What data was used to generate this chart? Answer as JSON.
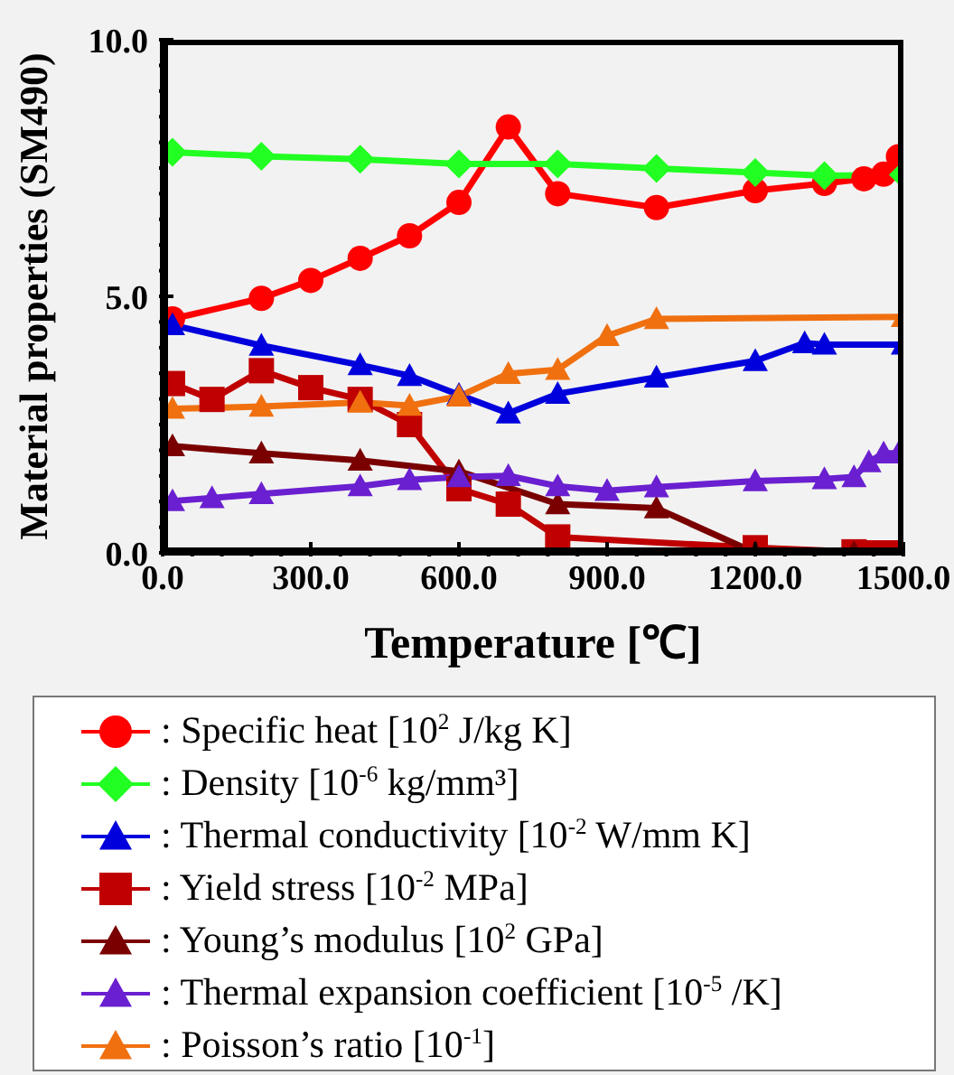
{
  "chart_data": {
    "type": "line",
    "xlabel": "Temperature [℃]",
    "ylabel": "Material properties (SM490)",
    "xlim": [
      0,
      1500
    ],
    "ylim": [
      0,
      10
    ],
    "xticks": [
      {
        "value": 0,
        "label": "0.0"
      },
      {
        "value": 60,
        "label": null
      },
      {
        "value": 120,
        "label": null
      },
      {
        "value": 180,
        "label": null
      },
      {
        "value": 240,
        "label": null
      },
      {
        "value": 300,
        "label": "300.0"
      },
      {
        "value": 360,
        "label": null
      },
      {
        "value": 420,
        "label": null
      },
      {
        "value": 480,
        "label": null
      },
      {
        "value": 540,
        "label": null
      },
      {
        "value": 600,
        "label": "600.0"
      },
      {
        "value": 660,
        "label": null
      },
      {
        "value": 720,
        "label": null
      },
      {
        "value": 780,
        "label": null
      },
      {
        "value": 840,
        "label": null
      },
      {
        "value": 900,
        "label": "900.0"
      },
      {
        "value": 960,
        "label": null
      },
      {
        "value": 1020,
        "label": null
      },
      {
        "value": 1080,
        "label": null
      },
      {
        "value": 1140,
        "label": null
      },
      {
        "value": 1200,
        "label": "1200.0"
      },
      {
        "value": 1260,
        "label": null
      },
      {
        "value": 1320,
        "label": null
      },
      {
        "value": 1380,
        "label": null
      },
      {
        "value": 1440,
        "label": null
      },
      {
        "value": 1500,
        "label": "1500.0"
      }
    ],
    "yticks": [
      {
        "value": 0,
        "label": "0.0"
      },
      {
        "value": 0.5,
        "label": null
      },
      {
        "value": 1,
        "label": null
      },
      {
        "value": 1.5,
        "label": null
      },
      {
        "value": 2,
        "label": null
      },
      {
        "value": 2.5,
        "label": null
      },
      {
        "value": 3,
        "label": null
      },
      {
        "value": 3.5,
        "label": null
      },
      {
        "value": 4,
        "label": null
      },
      {
        "value": 4.5,
        "label": null
      },
      {
        "value": 5,
        "label": "5.0"
      },
      {
        "value": 5.5,
        "label": null
      },
      {
        "value": 6,
        "label": null
      },
      {
        "value": 6.5,
        "label": null
      },
      {
        "value": 7,
        "label": null
      },
      {
        "value": 7.5,
        "label": null
      },
      {
        "value": 8,
        "label": null
      },
      {
        "value": 8.5,
        "label": null
      },
      {
        "value": 9,
        "label": null
      },
      {
        "value": 9.5,
        "label": null
      },
      {
        "value": 10,
        "label": "10.0"
      }
    ],
    "legend": "bottom",
    "series": [
      {
        "name": ": Specific heat [10$^{2}$ J/kg K]",
        "color": "#ff0000",
        "marker": "circle",
        "x": [
          20,
          200,
          300,
          400,
          500,
          600,
          700,
          800,
          1000,
          1200,
          1340,
          1420,
          1460,
          1490
        ],
        "values": [
          4.56,
          4.96,
          5.31,
          5.74,
          6.18,
          6.83,
          8.3,
          7.0,
          6.73,
          7.06,
          7.2,
          7.29,
          7.38,
          7.72
        ]
      },
      {
        "name": ": Density [10$^{-6}$ kg/mm³]",
        "color": "#22ff22",
        "marker": "diamond",
        "x": [
          20,
          200,
          400,
          600,
          800,
          1000,
          1200,
          1340,
          1500
        ],
        "values": [
          7.81,
          7.73,
          7.67,
          7.58,
          7.58,
          7.49,
          7.41,
          7.35,
          7.37
        ]
      },
      {
        "name": ": Thermal conductivity [10$^{-2}$ W/mm K]",
        "color": "#0000dd",
        "marker": "triangle",
        "x": [
          20,
          200,
          400,
          500,
          600,
          700,
          800,
          1000,
          1200,
          1300,
          1340,
          1500
        ],
        "values": [
          4.44,
          4.04,
          3.66,
          3.45,
          3.08,
          2.72,
          3.1,
          3.42,
          3.74,
          4.09,
          4.06,
          4.06
        ]
      },
      {
        "name": ": Yield stress [10$^{-2}$ MPa]",
        "color": "#c00000",
        "marker": "square",
        "x": [
          20,
          100,
          200,
          300,
          400,
          500,
          600,
          700,
          800,
          1200,
          1400,
          1450,
          1500
        ],
        "values": [
          3.3,
          2.99,
          3.55,
          3.22,
          2.99,
          2.5,
          1.25,
          0.95,
          0.31,
          0.1,
          0.02,
          0,
          0
        ]
      },
      {
        "name": ": Young’s modulus [10$^{2}$ GPa]",
        "color": "#7a0000",
        "marker": "triangle",
        "x": [
          20,
          200,
          400,
          600,
          800,
          1000,
          1200,
          1400
        ],
        "values": [
          2.08,
          1.94,
          1.8,
          1.59,
          0.95,
          0.87,
          0,
          0
        ]
      },
      {
        "name": ": Thermal expansion coefficient [10$^{-5}$ /K]",
        "color": "#6a1fd0",
        "marker": "triangle",
        "x": [
          20,
          100,
          200,
          400,
          500,
          600,
          700,
          800,
          900,
          1000,
          1200,
          1340,
          1400,
          1430,
          1460,
          1490
        ],
        "values": [
          1.01,
          1.07,
          1.15,
          1.3,
          1.42,
          1.48,
          1.5,
          1.3,
          1.21,
          1.28,
          1.4,
          1.44,
          1.48,
          1.77,
          1.94,
          1.94
        ]
      },
      {
        "name": ": Poisson’s ratio [10$^{-1}$]",
        "color": "#f07010",
        "marker": "triangle",
        "x": [
          20,
          200,
          400,
          500,
          600,
          700,
          800,
          900,
          1000,
          1500
        ],
        "values": [
          2.81,
          2.85,
          2.93,
          2.87,
          3.05,
          3.49,
          3.57,
          4.23,
          4.56,
          4.6
        ]
      }
    ]
  }
}
